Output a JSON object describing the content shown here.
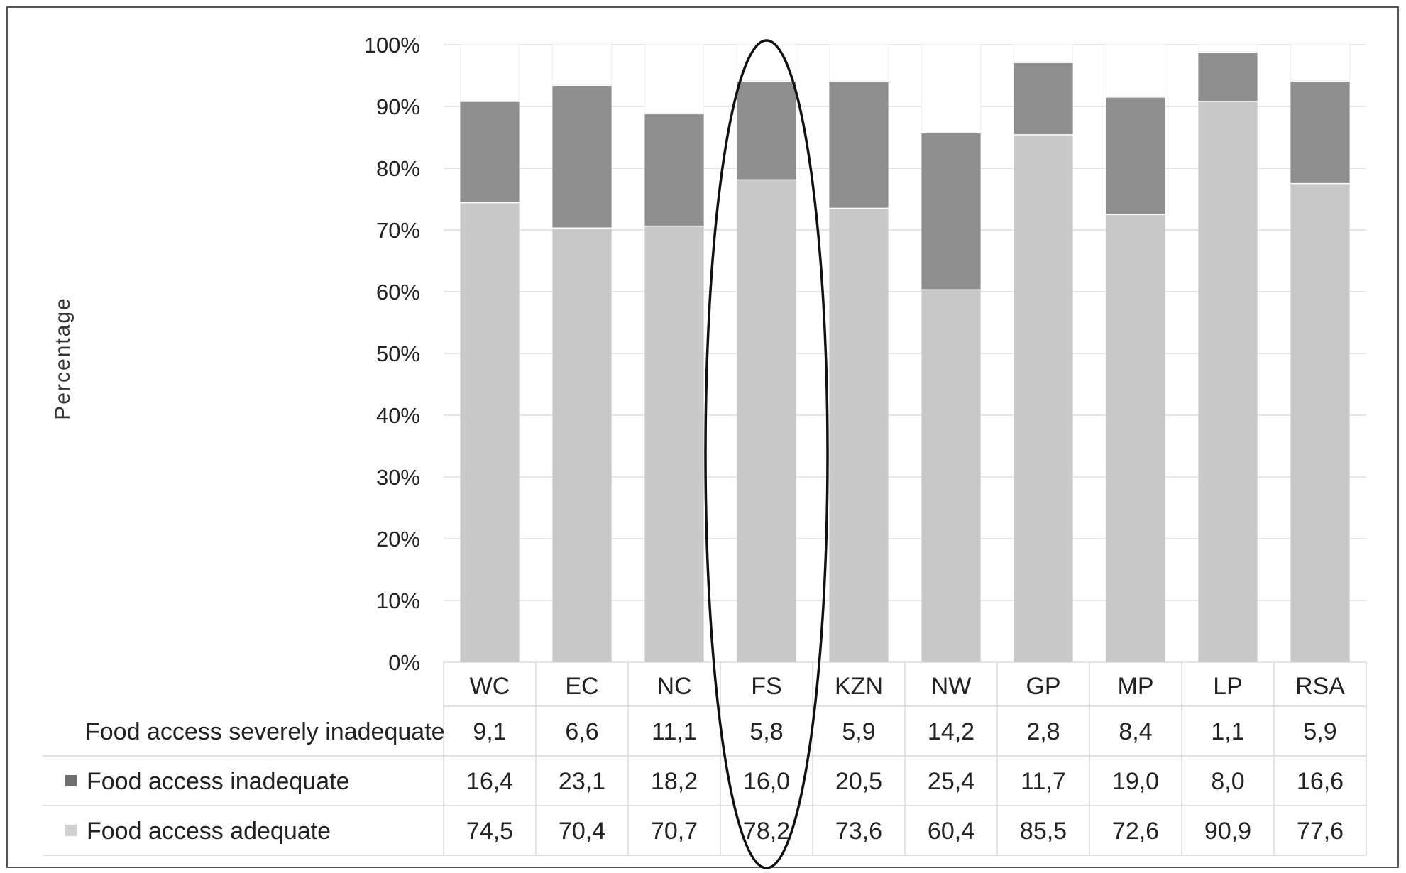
{
  "chart_data": {
    "type": "bar",
    "stacked": true,
    "ylabel": "Percentage",
    "xlabel": "",
    "ylim": [
      0,
      100
    ],
    "yticks": [
      "0%",
      "10%",
      "20%",
      "30%",
      "40%",
      "50%",
      "60%",
      "70%",
      "80%",
      "90%",
      "100%"
    ],
    "grid": true,
    "categories": [
      "WC",
      "EC",
      "NC",
      "FS",
      "KZN",
      "NW",
      "GP",
      "MP",
      "LP",
      "RSA"
    ],
    "series": [
      {
        "name": "Food access adequate",
        "color": "#c8c8c8",
        "values": [
          74.5,
          70.4,
          70.7,
          78.2,
          73.6,
          60.4,
          85.5,
          72.6,
          90.9,
          77.6
        ],
        "labels": [
          "74,5",
          "70,4",
          "70,7",
          "78,2",
          "73,6",
          "60,4",
          "85,5",
          "72,6",
          "90,9",
          "77,6"
        ]
      },
      {
        "name": "Food access inadequate",
        "color": "#8f8f8f",
        "values": [
          16.4,
          23.1,
          18.2,
          16.0,
          20.5,
          25.4,
          11.7,
          19.0,
          8.0,
          16.6
        ],
        "labels": [
          "16,4",
          "23,1",
          "18,2",
          "16,0",
          "20,5",
          "25,4",
          "11,7",
          "19,0",
          "8,0",
          "16,6"
        ]
      },
      {
        "name": "Food access severely inadequate",
        "color": "#ffffff",
        "values": [
          9.1,
          6.6,
          11.1,
          5.8,
          5.9,
          14.2,
          2.8,
          8.4,
          1.1,
          5.9
        ],
        "labels": [
          "9,1",
          "6,6",
          "11,1",
          "5,8",
          "5,9",
          "14,2",
          "2,8",
          "8,4",
          "1,1",
          "5,9"
        ]
      }
    ],
    "table_rows": [
      "Food access severely inadequate",
      "Food access inadequate",
      "Food access adequate"
    ],
    "annotation": "ellipse around FS"
  }
}
